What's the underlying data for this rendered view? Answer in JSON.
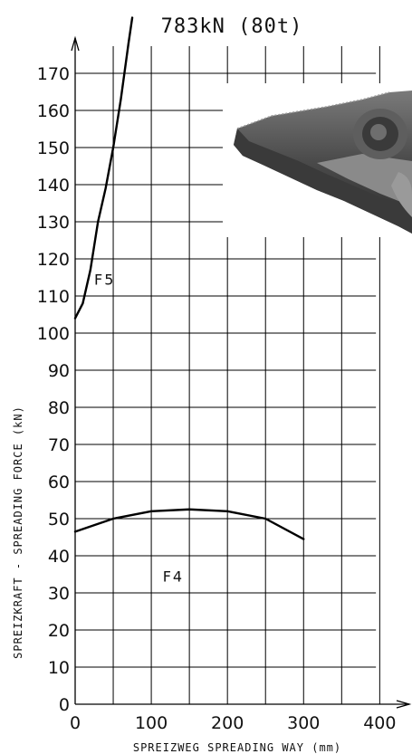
{
  "chart_data": {
    "type": "line",
    "title": "783kN (80t)",
    "xlabel": "SPREIZWEG SPREADING WAY (mm)",
    "ylabel": "SPREIZKRAFT - SPREADING FORCE (kN)",
    "xlim": [
      0,
      440
    ],
    "ylim": [
      0,
      180
    ],
    "xticks": [
      0,
      100,
      200,
      300,
      400
    ],
    "yticks": [
      0,
      10,
      20,
      30,
      40,
      50,
      60,
      70,
      80,
      90,
      100,
      110,
      120,
      130,
      140,
      150,
      160,
      170
    ],
    "grid": true,
    "series": [
      {
        "name": "F5",
        "x": [
          0,
          10,
          20,
          30,
          40,
          50,
          60,
          70,
          75
        ],
        "y": [
          104,
          108,
          117,
          130,
          139,
          150,
          163,
          178,
          185
        ]
      },
      {
        "name": "F4",
        "x": [
          0,
          50,
          100,
          150,
          200,
          250,
          300
        ],
        "y": [
          46.5,
          50,
          52,
          52.5,
          52,
          50,
          44.5
        ]
      }
    ]
  },
  "colors": {
    "line": "#000000",
    "grid": "#000000",
    "tool": "#555555"
  },
  "image": {
    "icon": "spreader-tip-icon"
  }
}
